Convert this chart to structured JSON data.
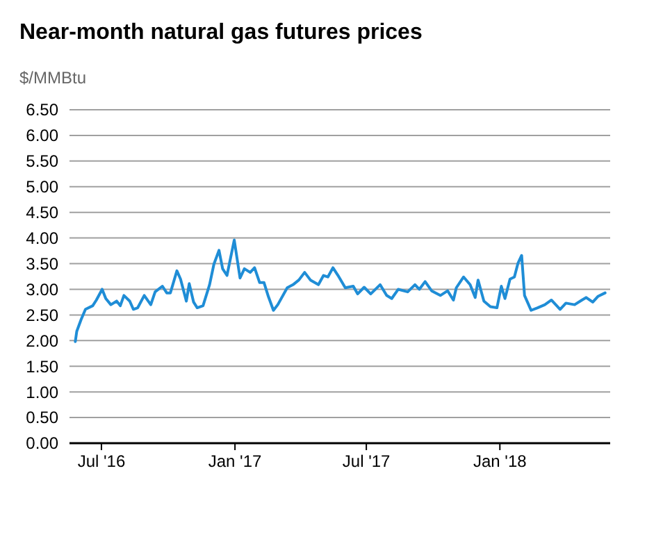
{
  "chart_data": {
    "type": "line",
    "title": "Near-month natural gas futures prices",
    "ylabel": "$/MMBtu",
    "x": [
      "2016-05-26",
      "2016-05-28",
      "2016-06-03",
      "2016-06-09",
      "2016-06-19",
      "2016-06-24",
      "2016-07-02",
      "2016-07-07",
      "2016-07-14",
      "2016-07-22",
      "2016-07-27",
      "2016-08-01",
      "2016-08-09",
      "2016-08-14",
      "2016-08-20",
      "2016-08-29",
      "2016-09-07",
      "2016-09-13",
      "2016-09-23",
      "2016-09-29",
      "2016-10-04",
      "2016-10-13",
      "2016-10-18",
      "2016-10-26",
      "2016-10-30",
      "2016-11-05",
      "2016-11-10",
      "2016-11-18",
      "2016-11-27",
      "2016-12-03",
      "2016-12-10",
      "2016-12-15",
      "2016-12-21",
      "2016-12-31",
      "2017-01-08",
      "2017-01-14",
      "2017-01-22",
      "2017-01-28",
      "2017-02-04",
      "2017-02-10",
      "2017-02-16",
      "2017-02-23",
      "2017-03-01",
      "2017-03-14",
      "2017-03-22",
      "2017-03-30",
      "2017-04-07",
      "2017-04-15",
      "2017-04-26",
      "2017-05-03",
      "2017-05-09",
      "2017-05-16",
      "2017-05-23",
      "2017-06-02",
      "2017-06-13",
      "2017-06-19",
      "2017-06-28",
      "2017-07-07",
      "2017-07-20",
      "2017-07-29",
      "2017-08-05",
      "2017-08-14",
      "2017-08-27",
      "2017-09-06",
      "2017-09-12",
      "2017-09-20",
      "2017-09-29",
      "2017-10-11",
      "2017-10-21",
      "2017-10-29",
      "2017-11-02",
      "2017-11-12",
      "2017-11-21",
      "2017-11-28",
      "2017-12-02",
      "2017-12-10",
      "2017-12-19",
      "2017-12-28",
      "2018-01-03",
      "2018-01-08",
      "2018-01-15",
      "2018-01-21",
      "2018-01-26",
      "2018-01-31",
      "2018-02-04",
      "2018-02-13",
      "2018-02-22",
      "2018-03-04",
      "2018-03-13",
      "2018-03-25",
      "2018-04-02",
      "2018-04-14",
      "2018-04-24",
      "2018-04-30",
      "2018-05-09",
      "2018-05-16",
      "2018-05-26"
    ],
    "series": [
      {
        "color": "#1f8dd6",
        "values": [
          1.98,
          2.18,
          2.41,
          2.61,
          2.68,
          2.79,
          3.0,
          2.82,
          2.7,
          2.77,
          2.68,
          2.88,
          2.77,
          2.61,
          2.64,
          2.88,
          2.7,
          2.95,
          3.06,
          2.93,
          2.93,
          3.36,
          3.2,
          2.77,
          3.11,
          2.75,
          2.64,
          2.68,
          3.09,
          3.49,
          3.76,
          3.4,
          3.27,
          3.96,
          3.22,
          3.4,
          3.33,
          3.42,
          3.13,
          3.13,
          2.86,
          2.59,
          2.7,
          3.03,
          3.09,
          3.18,
          3.33,
          3.18,
          3.09,
          3.27,
          3.24,
          3.42,
          3.27,
          3.03,
          3.06,
          2.91,
          3.04,
          2.91,
          3.09,
          2.88,
          2.82,
          3.0,
          2.95,
          3.09,
          3.0,
          3.15,
          2.97,
          2.88,
          2.97,
          2.79,
          3.03,
          3.24,
          3.09,
          2.84,
          3.18,
          2.77,
          2.66,
          2.64,
          3.06,
          2.82,
          3.2,
          3.24,
          3.51,
          3.66,
          2.88,
          2.59,
          2.64,
          2.7,
          2.79,
          2.61,
          2.73,
          2.7,
          2.79,
          2.84,
          2.75,
          2.86,
          2.93
        ]
      }
    ],
    "xlim": [
      "2016-05-18",
      "2018-06-02"
    ],
    "xticks": [
      {
        "value": "2016-07-01",
        "label": "Jul '16"
      },
      {
        "value": "2017-01-01",
        "label": "Jan '17"
      },
      {
        "value": "2017-07-01",
        "label": "Jul '17"
      },
      {
        "value": "2018-01-01",
        "label": "Jan '18"
      }
    ],
    "ylim": [
      0,
      6.5
    ],
    "yticks": [
      {
        "value": 0,
        "label": "0.00"
      },
      {
        "value": 0.5,
        "label": "0.50"
      },
      {
        "value": 1,
        "label": "1.00"
      },
      {
        "value": 1.5,
        "label": "1.50"
      },
      {
        "value": 2,
        "label": "2.00"
      },
      {
        "value": 2.5,
        "label": "2.50"
      },
      {
        "value": 3,
        "label": "3.00"
      },
      {
        "value": 3.5,
        "label": "3.50"
      },
      {
        "value": 4,
        "label": "4.00"
      },
      {
        "value": 4.5,
        "label": "4.50"
      },
      {
        "value": 5,
        "label": "5.00"
      },
      {
        "value": 5.5,
        "label": "5.50"
      },
      {
        "value": 6,
        "label": "6.00"
      },
      {
        "value": 6.5,
        "label": "6.50"
      }
    ],
    "grid": "y",
    "marker": "none",
    "line_style": "solid"
  }
}
